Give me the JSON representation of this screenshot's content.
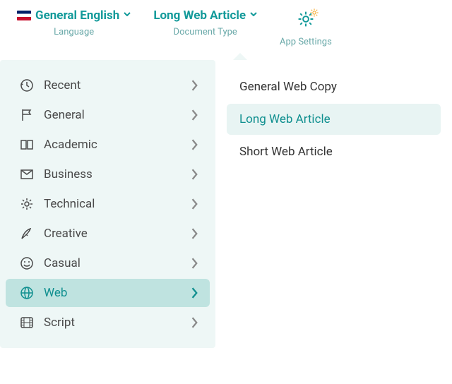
{
  "header": {
    "language": {
      "label": "General English",
      "sub": "Language"
    },
    "docType": {
      "label": "Long Web Article",
      "sub": "Document Type"
    },
    "settings": {
      "sub": "App Settings"
    }
  },
  "categories": [
    {
      "icon": "recent",
      "label": "Recent",
      "active": false
    },
    {
      "icon": "flag",
      "label": "General",
      "active": false
    },
    {
      "icon": "book",
      "label": "Academic",
      "active": false
    },
    {
      "icon": "mail",
      "label": "Business",
      "active": false
    },
    {
      "icon": "gear",
      "label": "Technical",
      "active": false
    },
    {
      "icon": "pen",
      "label": "Creative",
      "active": false
    },
    {
      "icon": "smile",
      "label": "Casual",
      "active": false
    },
    {
      "icon": "globe",
      "label": "Web",
      "active": true
    },
    {
      "icon": "film",
      "label": "Script",
      "active": false
    }
  ],
  "options": [
    {
      "label": "General Web Copy",
      "selected": false
    },
    {
      "label": "Long Web Article",
      "selected": true
    },
    {
      "label": "Short Web Article",
      "selected": false
    }
  ],
  "colors": {
    "accent": "#139a9a",
    "panelBg": "#eef7f6",
    "activeBg": "#bfe3e0",
    "selectedBg": "#e8f4f3"
  }
}
